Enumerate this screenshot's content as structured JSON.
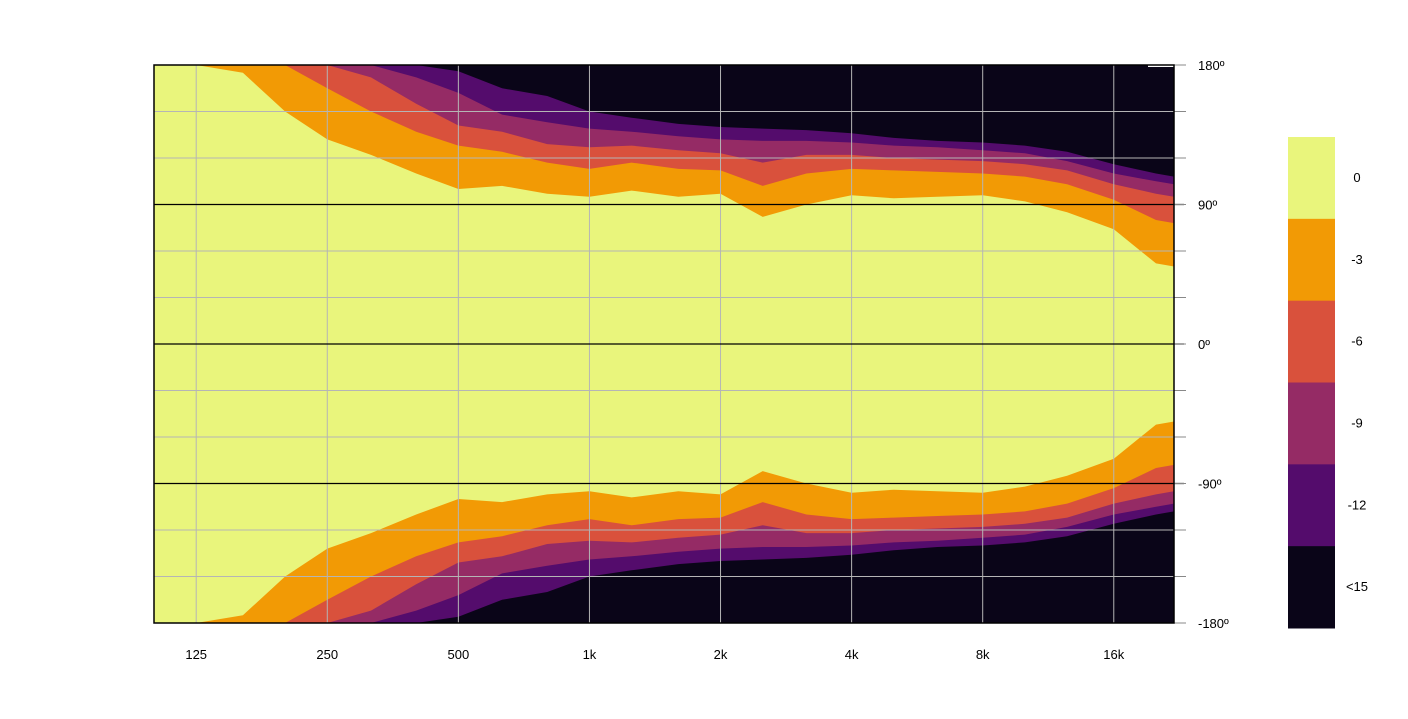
{
  "chart_data": {
    "type": "heatmap",
    "title": "",
    "xlabel": "",
    "ylabel": "",
    "x_scale": "log2",
    "x_range_hz": [
      100,
      22000
    ],
    "y_range_deg": [
      -180,
      180
    ],
    "x_ticks": [
      {
        "value": 125,
        "label": "125"
      },
      {
        "value": 250,
        "label": "250"
      },
      {
        "value": 500,
        "label": "500"
      },
      {
        "value": 1000,
        "label": "1k"
      },
      {
        "value": 2000,
        "label": "2k"
      },
      {
        "value": 4000,
        "label": "4k"
      },
      {
        "value": 8000,
        "label": "8k"
      },
      {
        "value": 16000,
        "label": "16k"
      }
    ],
    "y_ticks": [
      {
        "value": 180,
        "label": "180º"
      },
      {
        "value": 90,
        "label": "90º"
      },
      {
        "value": 0,
        "label": "0º"
      },
      {
        "value": -90,
        "label": "-90º"
      },
      {
        "value": -180,
        "label": "-180º"
      }
    ],
    "legend_placement": "right",
    "levels": [
      {
        "label": "0",
        "color": "#e9f57c"
      },
      {
        "label": "-3",
        "color": "#f29a05"
      },
      {
        "label": "-6",
        "color": "#d9513c"
      },
      {
        "label": "-9",
        "color": "#952b65"
      },
      {
        "label": "-12",
        "color": "#540c6c"
      },
      {
        "label": "<15",
        "color": "#0a0518"
      }
    ],
    "level_boundaries_deg": {
      "frequencies_hz": [
        100,
        125,
        160,
        200,
        250,
        315,
        400,
        500,
        630,
        800,
        1000,
        1250,
        1600,
        2000,
        2500,
        3150,
        4000,
        5000,
        6300,
        8000,
        10000,
        12500,
        16000,
        20000,
        22000
      ],
      "minus3": [
        180,
        180,
        175,
        150,
        132,
        122,
        110,
        100,
        102,
        97,
        95,
        99,
        95,
        97,
        82,
        90,
        96,
        94,
        95,
        96,
        92,
        85,
        74,
        52,
        50
      ],
      "minus6": [
        180,
        180,
        180,
        180,
        165,
        150,
        137,
        128,
        124,
        117,
        113,
        117,
        113,
        112,
        102,
        110,
        113,
        112,
        111,
        110,
        108,
        103,
        93,
        80,
        78
      ],
      "minus9": [
        180,
        180,
        180,
        180,
        180,
        172,
        155,
        141,
        137,
        129,
        127,
        128,
        125,
        123,
        117,
        122,
        122,
        120,
        119,
        118,
        116,
        112,
        103,
        97,
        95
      ],
      "minus12": [
        180,
        180,
        180,
        180,
        180,
        180,
        172,
        162,
        148,
        143,
        139,
        137,
        134,
        132,
        131,
        131,
        130,
        128,
        127,
        125,
        123,
        118,
        110,
        105,
        103
      ],
      "minus15": [
        180,
        180,
        180,
        180,
        180,
        180,
        180,
        176,
        165,
        160,
        150,
        146,
        142,
        140,
        139,
        138,
        136,
        133,
        131,
        130,
        128,
        124,
        116,
        110,
        108
      ]
    },
    "grid": true
  }
}
